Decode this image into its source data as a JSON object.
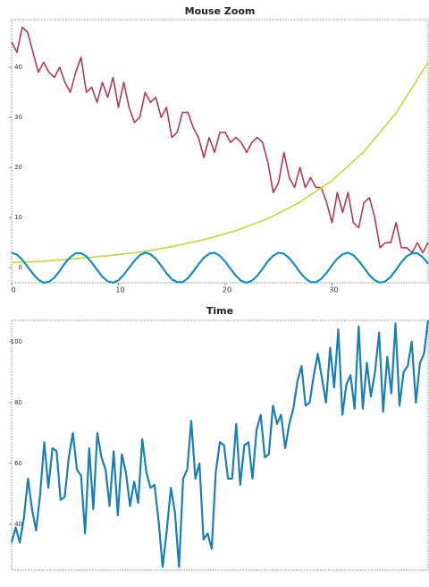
{
  "chart_data": [
    {
      "type": "line",
      "title": "Mouse Zoom",
      "x": [
        0,
        0.5,
        1,
        1.5,
        2,
        2.5,
        3,
        3.5,
        4,
        4.5,
        5,
        5.5,
        6,
        6.5,
        7,
        7.5,
        8,
        8.5,
        9,
        9.5,
        10,
        10.5,
        11,
        11.5,
        12,
        12.5,
        13,
        13.5,
        14,
        14.5,
        15,
        15.5,
        16,
        16.5,
        17,
        17.5,
        18,
        18.5,
        19,
        19.5,
        20,
        20.5,
        21,
        21.5,
        22,
        22.5,
        23,
        23.5,
        24,
        24.5,
        25,
        25.5,
        26,
        26.5,
        27,
        27.5,
        28,
        28.5,
        29,
        29.5,
        30,
        30.5,
        31,
        31.5,
        32,
        32.5,
        33,
        33.5,
        34,
        34.5,
        35,
        35.5,
        36,
        36.5,
        37,
        37.5,
        38,
        38.5,
        39
      ],
      "series": [
        {
          "color": "#b03a55",
          "values": [
            45,
            43,
            48,
            47,
            43,
            39,
            41,
            39,
            38,
            40,
            37,
            35,
            39,
            42,
            35,
            36,
            33,
            37,
            34,
            38,
            32,
            37,
            32,
            29,
            30,
            35,
            33,
            34,
            30,
            32,
            26,
            27,
            31,
            31,
            28,
            26,
            22,
            26,
            23,
            27,
            27,
            25,
            26,
            25,
            23,
            25,
            26,
            25,
            21,
            15,
            17,
            23,
            18,
            16,
            20,
            16,
            18,
            16,
            16,
            13,
            9,
            15,
            11,
            15,
            9,
            8,
            13,
            14,
            10,
            4,
            5,
            5,
            9,
            4,
            4,
            3,
            5,
            3,
            5
          ]
        },
        {
          "color": "#c5d640",
          "x": [
            0,
            3,
            6,
            9,
            12,
            15,
            18,
            21,
            24,
            27,
            30,
            33,
            36,
            39
          ],
          "values": [
            1.0,
            1.3,
            1.8,
            2.4,
            3.1,
            4.2,
            5.6,
            7.4,
            9.8,
            13.1,
            17.4,
            23.2,
            30.9,
            41.0
          ]
        },
        {
          "color": "#1a8cc0",
          "values": [
            3,
            2.6,
            1.6,
            0.2,
            -1.2,
            -2.4,
            -3,
            -2.8,
            -2,
            -0.6,
            0.9,
            2.1,
            2.9,
            2.9,
            2.3,
            1,
            -0.4,
            -1.8,
            -2.7,
            -3,
            -2.5,
            -1.4,
            0,
            1.4,
            2.5,
            3,
            2.7,
            1.8,
            0.4,
            -1.1,
            -2.3,
            -2.9,
            -2.9,
            -2.1,
            -0.8,
            0.7,
            2,
            2.8,
            3,
            2.4,
            1.2,
            -0.2,
            -1.6,
            -2.6,
            -3,
            -2.6,
            -1.6,
            -0.2,
            1.3,
            2.4,
            3,
            2.8,
            1.9,
            0.6,
            -0.9,
            -2.1,
            -2.9,
            -2.9,
            -2.2,
            -1,
            0.5,
            1.8,
            2.7,
            3,
            2.5,
            1.4,
            0,
            -1.5,
            -2.5,
            -3,
            -2.7,
            -1.8,
            -0.4,
            1.1,
            2.3,
            2.9,
            2.9,
            2.1,
            0.8
          ]
        }
      ],
      "xlim": [
        0,
        39
      ],
      "ylim": [
        -3,
        49.5
      ],
      "xticks": [
        0,
        10,
        20,
        30
      ],
      "yticks": [
        0,
        10,
        20,
        30,
        40
      ]
    },
    {
      "type": "line",
      "title": "Time",
      "series": [
        {
          "color": "#1a7fb5",
          "values": [
            34,
            39,
            34,
            42,
            55,
            45,
            38,
            50,
            67,
            52,
            65,
            64,
            48,
            49,
            62,
            70,
            58,
            56,
            37,
            65,
            45,
            70,
            62,
            58,
            46,
            64,
            43,
            63,
            57,
            46,
            54,
            47,
            68,
            57,
            52,
            53,
            41,
            26,
            38,
            52,
            44,
            26,
            55,
            58,
            74,
            55,
            60,
            35,
            37,
            32,
            57,
            67,
            66,
            55,
            55,
            73,
            53,
            66,
            67,
            55,
            71,
            76,
            62,
            63,
            79,
            73,
            76,
            65,
            73,
            78,
            87,
            92,
            79,
            80,
            89,
            96,
            88,
            80,
            98,
            85,
            104,
            76,
            86,
            89,
            78,
            105,
            78,
            93,
            82,
            90,
            103,
            77,
            95,
            83,
            106,
            79,
            90,
            92,
            100,
            80,
            93,
            96,
            107
          ]
        }
      ],
      "ylim": [
        25,
        107
      ],
      "yticks": [
        40,
        60,
        80,
        100
      ]
    }
  ]
}
